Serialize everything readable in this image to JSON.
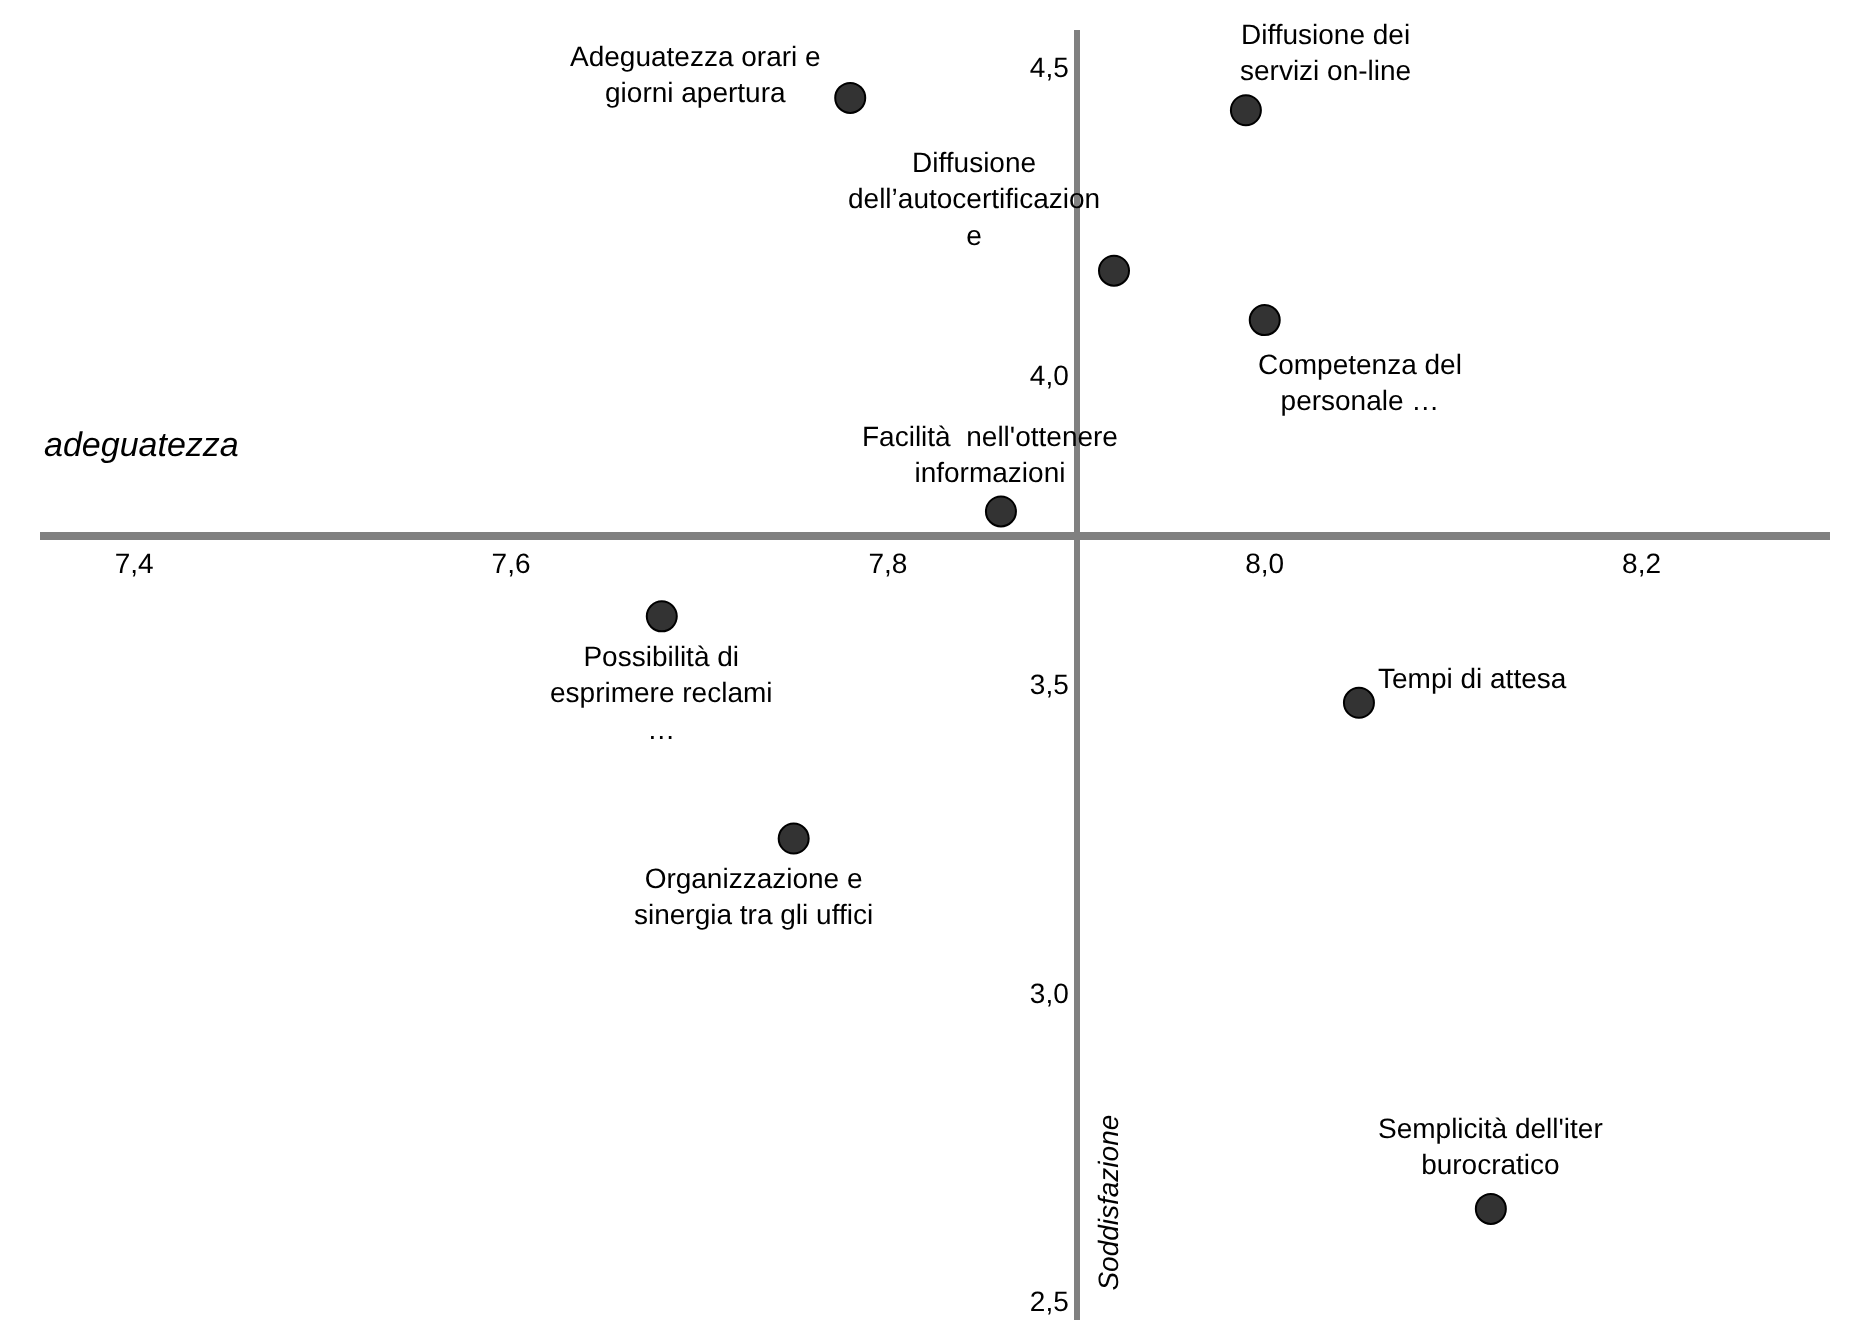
{
  "chart_data": {
    "type": "scatter",
    "xlabel": "adeguatezza",
    "ylabel": "Soddisfazione",
    "x": [
      7.78,
      7.99,
      7.92,
      8.0,
      7.86,
      7.68,
      8.05,
      7.75,
      8.12
    ],
    "series": [
      {
        "color": "#333333",
        "values": [
          4.45,
          4.43,
          4.17,
          4.09,
          3.78,
          3.61,
          3.47,
          3.25,
          2.65
        ]
      }
    ],
    "annotations": [
      {
        "text": "Adeguatezza orari e\ngiorni apertura",
        "x": 7.78,
        "y": 4.45
      },
      {
        "text": "Diffusione dei\nservizi on-line",
        "x": 7.99,
        "y": 4.43
      },
      {
        "text": "Diffusione\ndell’autocertificazion\ne",
        "x": 7.92,
        "y": 4.17
      },
      {
        "text": "Competenza del\npersonale …",
        "x": 8.0,
        "y": 4.09
      },
      {
        "text": "Facilità  nell'ottenere\ninformazioni",
        "x": 7.86,
        "y": 3.78
      },
      {
        "text": "Possibilità di\nesprimere reclami\n…",
        "x": 7.68,
        "y": 3.61
      },
      {
        "text": "Tempi di attesa",
        "x": 8.05,
        "y": 3.47
      },
      {
        "text": "Organizzazione e\nsinergia tra gli uffici",
        "x": 7.75,
        "y": 3.25
      },
      {
        "text": "Semplicità dell'iter\nburocratico",
        "x": 8.12,
        "y": 2.65
      }
    ],
    "xlim": [
      7.35,
      8.3
    ],
    "ylim": [
      2.47,
      4.56
    ],
    "xticks": [
      {
        "value": 7.4,
        "label": "7,4"
      },
      {
        "value": 7.6,
        "label": "7,6"
      },
      {
        "value": 7.8,
        "label": "7,8"
      },
      {
        "value": 8.0,
        "label": "8,0"
      },
      {
        "value": 8.2,
        "label": "8,2"
      }
    ],
    "yticks": [
      {
        "value": 2.5,
        "label": "2,5"
      },
      {
        "value": 3.0,
        "label": "3,0"
      },
      {
        "value": 3.5,
        "label": "3,5"
      },
      {
        "value": 4.0,
        "label": "4,0"
      },
      {
        "value": 4.5,
        "label": "4,5"
      }
    ],
    "marker": "circle"
  }
}
